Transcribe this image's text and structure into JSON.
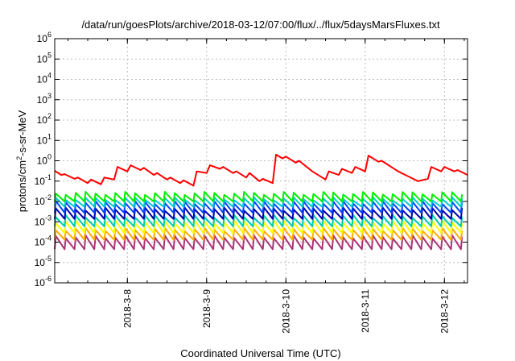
{
  "chart_data": {
    "type": "line",
    "title": "/data/run/goesPlots/archive/2018-03-12/07:00/flux/../flux/5daysMarsFluxes.txt",
    "xlabel": "Coordinated Universal Time (UTC)",
    "ylabel_parts": [
      "protons/cm",
      "2",
      "-s-sr-MeV"
    ],
    "y_scale": "log",
    "ylim": [
      1e-06,
      1000000.0
    ],
    "y_ticks": [
      {
        "base": "10",
        "exp": "-6"
      },
      {
        "base": "10",
        "exp": "-5"
      },
      {
        "base": "10",
        "exp": "-4"
      },
      {
        "base": "10",
        "exp": "-3"
      },
      {
        "base": "10",
        "exp": "-2"
      },
      {
        "base": "10",
        "exp": "-1"
      },
      {
        "base": "10",
        "exp": "0"
      },
      {
        "base": "10",
        "exp": "1"
      },
      {
        "base": "10",
        "exp": "2"
      },
      {
        "base": "10",
        "exp": "3"
      },
      {
        "base": "10",
        "exp": "4"
      },
      {
        "base": "10",
        "exp": "5"
      },
      {
        "base": "10",
        "exp": "6"
      }
    ],
    "x_axis": "date",
    "xlim": [
      "2018-03-07T02:00",
      "2018-03-12T07:00"
    ],
    "x_ticks": [
      {
        "label": "2018-3-8",
        "at": "2018-03-08T00:00"
      },
      {
        "label": "2018-3-9",
        "at": "2018-03-09T00:00"
      },
      {
        "label": "2018-3-10",
        "at": "2018-03-10T00:00"
      },
      {
        "label": "2018-3-11",
        "at": "2018-03-11T00:00"
      },
      {
        "label": "2018-3-12",
        "at": "2018-03-12T00:00"
      }
    ],
    "grid": true,
    "legend": "none",
    "series": [
      {
        "color": "#ff0000",
        "x": [
          "2018-03-07T02:00",
          "2018-03-07T04:00",
          "2018-03-07T05:00",
          "2018-03-07T08:00",
          "2018-03-07T09:00",
          "2018-03-07T12:00",
          "2018-03-07T13:00",
          "2018-03-07T16:00",
          "2018-03-07T17:00",
          "2018-03-07T20:00",
          "2018-03-07T21:00",
          "2018-03-08T00:00",
          "2018-03-08T01:00",
          "2018-03-08T04:00",
          "2018-03-08T05:00",
          "2018-03-08T08:00",
          "2018-03-08T09:00",
          "2018-03-08T12:00",
          "2018-03-08T13:00",
          "2018-03-08T16:00",
          "2018-03-08T17:00",
          "2018-03-08T20:00",
          "2018-03-08T21:00",
          "2018-03-09T00:00",
          "2018-03-09T01:00",
          "2018-03-09T04:00",
          "2018-03-09T05:00",
          "2018-03-09T08:00",
          "2018-03-09T09:00",
          "2018-03-09T12:00",
          "2018-03-09T13:00",
          "2018-03-09T16:00",
          "2018-03-09T17:00",
          "2018-03-09T20:00",
          "2018-03-09T21:00",
          "2018-03-09T23:00",
          "2018-03-10T00:00",
          "2018-03-10T03:00",
          "2018-03-10T04:00",
          "2018-03-10T08:00",
          "2018-03-10T12:00",
          "2018-03-10T13:00",
          "2018-03-10T16:00",
          "2018-03-10T17:00",
          "2018-03-10T20:00",
          "2018-03-10T21:00",
          "2018-03-11T00:00",
          "2018-03-11T01:00",
          "2018-03-11T04:00",
          "2018-03-11T05:00",
          "2018-03-11T10:00",
          "2018-03-11T16:00",
          "2018-03-11T19:00",
          "2018-03-11T20:00",
          "2018-03-11T23:00",
          "2018-03-12T00:00",
          "2018-03-12T03:00",
          "2018-03-12T04:00",
          "2018-03-12T07:00"
        ],
        "values": [
          0.32,
          0.2,
          0.22,
          0.13,
          0.15,
          0.08,
          0.12,
          0.07,
          0.15,
          0.12,
          0.5,
          0.3,
          0.6,
          0.35,
          0.45,
          0.2,
          0.25,
          0.12,
          0.15,
          0.08,
          0.11,
          0.06,
          0.3,
          0.25,
          0.6,
          0.4,
          0.5,
          0.25,
          0.3,
          0.15,
          0.25,
          0.1,
          0.13,
          0.08,
          2.0,
          1.3,
          1.6,
          0.8,
          1.0,
          0.3,
          0.12,
          0.3,
          0.2,
          0.4,
          0.25,
          0.5,
          0.3,
          1.8,
          0.9,
          1.0,
          0.3,
          0.1,
          0.13,
          0.5,
          0.3,
          0.5,
          0.3,
          0.35,
          0.2
        ]
      },
      {
        "color": "#00ee00",
        "base": 0.01,
        "peak": 0.03
      },
      {
        "color": "#00cccc",
        "base": 0.0055,
        "peak": 0.016
      },
      {
        "color": "#0044ff",
        "base": 0.0028,
        "peak": 0.0105
      },
      {
        "color": "#0000aa",
        "base": 0.0014,
        "peak": 0.005
      },
      {
        "color": "#00ccaa",
        "base": 0.0006,
        "peak": 0.0022
      },
      {
        "color": "#ffff00",
        "base": 0.00028,
        "peak": 0.0012
      },
      {
        "color": "#ffaa00",
        "base": 0.00013,
        "peak": 0.0005
      },
      {
        "color": "#aa3377",
        "base": 4.5e-05,
        "peak": 0.00022
      }
    ]
  }
}
